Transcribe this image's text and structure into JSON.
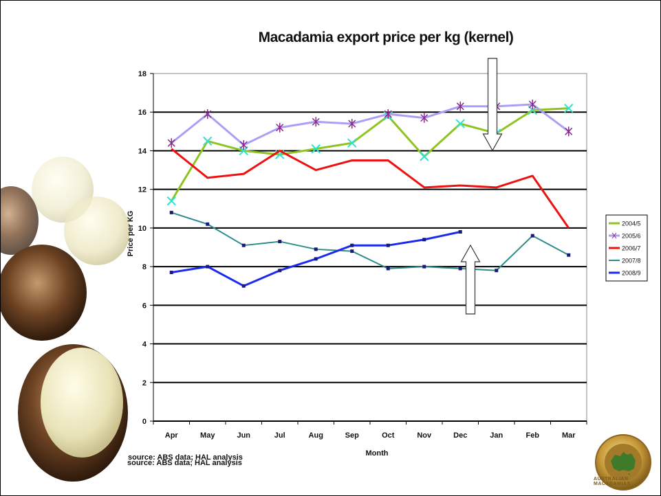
{
  "chart_data": {
    "type": "line",
    "title": "Macadamia export price per kg (kernel)",
    "xlabel": "Month",
    "ylabel": "Price per KG",
    "categories": [
      "Apr",
      "May",
      "Jun",
      "Jul",
      "Aug",
      "Sep",
      "Oct",
      "Nov",
      "Dec",
      "Jan",
      "Feb",
      "Mar"
    ],
    "ylim": [
      0,
      18
    ],
    "yticks": [
      0,
      2,
      4,
      6,
      8,
      10,
      12,
      14,
      16,
      18
    ],
    "grid": "horizontal",
    "legend_position": "right",
    "series": [
      {
        "name": "2004/5",
        "color": "#8fc31f",
        "marker": "x",
        "width": 3,
        "values": [
          11.4,
          14.5,
          14.0,
          13.8,
          14.1,
          14.4,
          15.8,
          13.7,
          15.4,
          14.9,
          16.1,
          16.2
        ]
      },
      {
        "name": "2005/6",
        "color": "#a99ff5",
        "marker": "star",
        "width": 3,
        "values": [
          14.4,
          15.9,
          14.3,
          15.2,
          15.5,
          15.4,
          15.9,
          15.7,
          16.3,
          16.3,
          16.4,
          15.0
        ]
      },
      {
        "name": "2006/7",
        "color": "#ee1111",
        "marker": "none",
        "width": 3,
        "values": [
          14.1,
          12.6,
          12.8,
          14.0,
          13.0,
          13.5,
          13.5,
          12.1,
          12.2,
          12.1,
          12.7,
          10.0
        ]
      },
      {
        "name": "2007/8",
        "color": "#2e8b8b",
        "marker": "square",
        "width": 2,
        "values": [
          10.8,
          10.2,
          9.1,
          9.3,
          8.9,
          8.8,
          7.9,
          8.0,
          7.9,
          7.8,
          9.6,
          8.6
        ]
      },
      {
        "name": "2008/9",
        "color": "#1a2bef",
        "marker": "square",
        "width": 3,
        "values": [
          7.7,
          8.0,
          7.0,
          7.8,
          8.4,
          9.1,
          9.1,
          9.4,
          9.8,
          null,
          null,
          null
        ]
      }
    ],
    "source_note": [
      "source: ABS data; HAL analysis",
      "source: ABS data; HAL analysis"
    ]
  },
  "logo": {
    "text": "AUSTRALIAN MACADAMIAS"
  },
  "arrows": [
    {
      "direction": "down",
      "category": "Jan"
    },
    {
      "direction": "up",
      "category": "Dec"
    }
  ]
}
